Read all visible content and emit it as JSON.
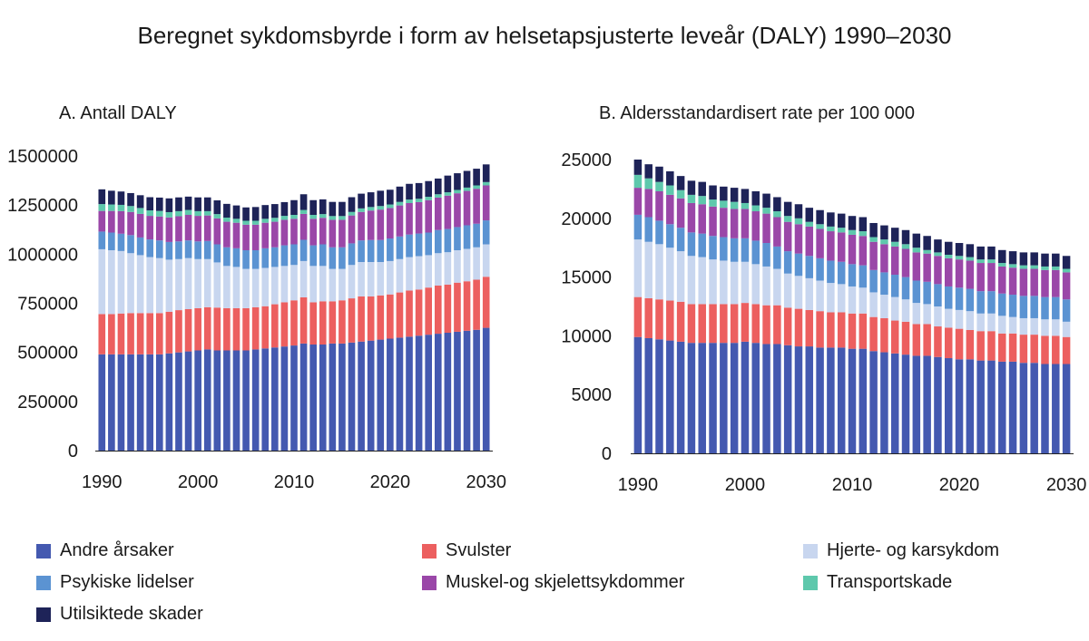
{
  "title": "Beregnet sykdomsbyrde i form av helsetapsjusterte leveår (DALY) 1990–2030",
  "categories": [
    {
      "name": "Andre årsaker",
      "color": "#4459b0"
    },
    {
      "name": "Svulster",
      "color": "#ec5f5f"
    },
    {
      "name": "Hjerte- og karsykdom",
      "color": "#c8d6ef"
    },
    {
      "name": "Psykiske lidelser",
      "color": "#5b93d2"
    },
    {
      "name": "Muskel-og skjelettsykdommer",
      "color": "#9a47a8"
    },
    {
      "name": "Transportskade",
      "color": "#5ec8ac"
    },
    {
      "name": "Utilsiktede skader",
      "color": "#1e2358"
    }
  ],
  "chart_data": [
    {
      "type": "bar",
      "stacked": true,
      "title": "A.  Antall DALY",
      "x_start": 1990,
      "x_end": 2030,
      "xticks": [
        "1990",
        "2000",
        "2010",
        "2020",
        "2030"
      ],
      "yticks": [
        "0",
        "250000",
        "500000",
        "750000",
        "1000000",
        "1250000",
        "1500000"
      ],
      "ylim": [
        0,
        1500000
      ],
      "series": [
        {
          "name": "Andre årsaker",
          "values": [
            490000,
            490000,
            490000,
            490000,
            490000,
            490000,
            490000,
            495000,
            500000,
            505000,
            510000,
            515000,
            510000,
            510000,
            510000,
            510000,
            515000,
            520000,
            525000,
            530000,
            535000,
            545000,
            540000,
            540000,
            545000,
            545000,
            550000,
            555000,
            560000,
            565000,
            570000,
            575000,
            580000,
            585000,
            590000,
            595000,
            600000,
            605000,
            610000,
            615000,
            625000
          ]
        },
        {
          "name": "Svulster",
          "values": [
            205000,
            205000,
            208000,
            210000,
            210000,
            210000,
            210000,
            212000,
            215000,
            215000,
            215000,
            215000,
            218000,
            215000,
            215000,
            215000,
            215000,
            215000,
            220000,
            225000,
            230000,
            235000,
            215000,
            220000,
            215000,
            220000,
            225000,
            230000,
            225000,
            225000,
            225000,
            230000,
            235000,
            235000,
            240000,
            245000,
            245000,
            250000,
            252000,
            255000,
            260000
          ]
        },
        {
          "name": "Hjerte- og karsykdom",
          "values": [
            330000,
            325000,
            318000,
            305000,
            295000,
            285000,
            280000,
            265000,
            260000,
            260000,
            250000,
            245000,
            230000,
            215000,
            210000,
            200000,
            195000,
            195000,
            190000,
            185000,
            180000,
            185000,
            185000,
            180000,
            165000,
            160000,
            170000,
            175000,
            175000,
            170000,
            170000,
            170000,
            170000,
            170000,
            165000,
            165000,
            165000,
            165000,
            165000,
            165000,
            165000
          ]
        },
        {
          "name": "Psykiske lidelser",
          "values": [
            90000,
            90000,
            88000,
            92000,
            90000,
            90000,
            90000,
            90000,
            90000,
            90000,
            90000,
            92000,
            92000,
            95000,
            95000,
            95000,
            95000,
            100000,
            100000,
            105000,
            105000,
            108000,
            105000,
            110000,
            110000,
            110000,
            110000,
            110000,
            112000,
            112000,
            115000,
            115000,
            115000,
            115000,
            115000,
            118000,
            118000,
            118000,
            120000,
            120000,
            122000
          ]
        },
        {
          "name": "Muskel-og skjelettsykdommer",
          "values": [
            105000,
            110000,
            115000,
            118000,
            120000,
            120000,
            122000,
            125000,
            128000,
            130000,
            130000,
            130000,
            132000,
            130000,
            130000,
            130000,
            130000,
            130000,
            130000,
            130000,
            130000,
            132000,
            135000,
            135000,
            140000,
            140000,
            142000,
            145000,
            150000,
            155000,
            155000,
            158000,
            160000,
            160000,
            165000,
            165000,
            170000,
            172000,
            175000,
            178000,
            178000
          ]
        },
        {
          "name": "Transportskade",
          "values": [
            35000,
            33000,
            32000,
            30000,
            30000,
            28000,
            28000,
            27000,
            26000,
            25000,
            24000,
            22000,
            22000,
            21000,
            20000,
            20000,
            20000,
            20000,
            20000,
            20000,
            20000,
            20000,
            20000,
            19000,
            19000,
            19000,
            18000,
            18000,
            18000,
            18000,
            18000,
            18000,
            18000,
            17000,
            17000,
            17000,
            17000,
            17000,
            17000,
            17000,
            17000
          ]
        },
        {
          "name": "Utilsiktede skader",
          "values": [
            75000,
            70000,
            68000,
            66000,
            65000,
            67000,
            68000,
            70000,
            70000,
            68000,
            70000,
            70000,
            70000,
            70000,
            68000,
            68000,
            70000,
            70000,
            70000,
            70000,
            75000,
            80000,
            75000,
            75000,
            72000,
            72000,
            75000,
            75000,
            75000,
            78000,
            75000,
            78000,
            80000,
            80000,
            80000,
            80000,
            85000,
            85000,
            85000,
            85000,
            90000
          ]
        }
      ]
    },
    {
      "type": "bar",
      "stacked": true,
      "title": "B. Aldersstandardisert rate per 100 000",
      "x_start": 1990,
      "x_end": 2030,
      "xticks": [
        "1990",
        "2000",
        "2010",
        "2020",
        "2030"
      ],
      "yticks": [
        "0",
        "5000",
        "10000",
        "15000",
        "20000",
        "25000"
      ],
      "ylim": [
        0,
        25000
      ],
      "series": [
        {
          "name": "Andre årsaker",
          "values": [
            9900,
            9800,
            9700,
            9600,
            9500,
            9400,
            9400,
            9400,
            9400,
            9400,
            9500,
            9400,
            9300,
            9300,
            9200,
            9100,
            9100,
            9000,
            9000,
            9000,
            8900,
            8900,
            8700,
            8600,
            8500,
            8400,
            8300,
            8300,
            8200,
            8100,
            8000,
            8000,
            7900,
            7900,
            7800,
            7800,
            7700,
            7700,
            7600,
            7600,
            7600
          ]
        },
        {
          "name": "Svulster",
          "values": [
            3400,
            3400,
            3400,
            3400,
            3400,
            3300,
            3300,
            3300,
            3300,
            3300,
            3300,
            3300,
            3300,
            3300,
            3200,
            3200,
            3100,
            3100,
            3000,
            3000,
            3000,
            3000,
            2900,
            2900,
            2800,
            2800,
            2700,
            2700,
            2600,
            2600,
            2600,
            2500,
            2500,
            2500,
            2400,
            2400,
            2400,
            2400,
            2400,
            2400,
            2300
          ]
        },
        {
          "name": "Hjerte- og karsykdom",
          "values": [
            4900,
            4800,
            4700,
            4500,
            4300,
            4100,
            4000,
            3800,
            3700,
            3600,
            3500,
            3400,
            3300,
            3100,
            2900,
            2800,
            2700,
            2600,
            2500,
            2400,
            2300,
            2200,
            2100,
            2000,
            2000,
            1900,
            1800,
            1700,
            1700,
            1600,
            1600,
            1600,
            1500,
            1500,
            1500,
            1400,
            1400,
            1400,
            1400,
            1400,
            1300
          ]
        },
        {
          "name": "Psykiske lidelser",
          "values": [
            2100,
            2100,
            2000,
            2000,
            2000,
            2000,
            2000,
            2000,
            2000,
            2000,
            2000,
            2000,
            2000,
            1900,
            1900,
            1900,
            1900,
            1900,
            1900,
            1900,
            1900,
            1900,
            1900,
            1900,
            1900,
            1900,
            1900,
            1900,
            1900,
            1900,
            1900,
            1900,
            1900,
            1900,
            1900,
            1900,
            1900,
            1900,
            1900,
            1900,
            1900
          ]
        },
        {
          "name": "Muskel-og skjelettsykdommer",
          "values": [
            2300,
            2400,
            2500,
            2500,
            2500,
            2500,
            2500,
            2500,
            2500,
            2500,
            2500,
            2500,
            2500,
            2500,
            2500,
            2500,
            2500,
            2500,
            2500,
            2500,
            2500,
            2500,
            2400,
            2400,
            2400,
            2400,
            2400,
            2400,
            2400,
            2400,
            2400,
            2400,
            2400,
            2400,
            2300,
            2300,
            2300,
            2300,
            2300,
            2300,
            2300
          ]
        },
        {
          "name": "Transportskade",
          "values": [
            1100,
            900,
            800,
            800,
            700,
            700,
            700,
            600,
            600,
            600,
            500,
            500,
            500,
            500,
            500,
            500,
            400,
            400,
            400,
            400,
            400,
            400,
            400,
            400,
            400,
            400,
            400,
            300,
            300,
            300,
            300,
            300,
            300,
            300,
            300,
            300,
            300,
            300,
            300,
            300,
            300
          ]
        },
        {
          "name": "Utilsiktede skader",
          "values": [
            1300,
            1200,
            1300,
            1200,
            1200,
            1200,
            1200,
            1200,
            1200,
            1200,
            1200,
            1200,
            1200,
            1200,
            1200,
            1200,
            1200,
            1200,
            1200,
            1200,
            1200,
            1200,
            1200,
            1200,
            1200,
            1200,
            1200,
            1200,
            1100,
            1100,
            1100,
            1100,
            1100,
            1100,
            1100,
            1100,
            1100,
            1100,
            1100,
            1100,
            1100
          ]
        }
      ]
    }
  ]
}
